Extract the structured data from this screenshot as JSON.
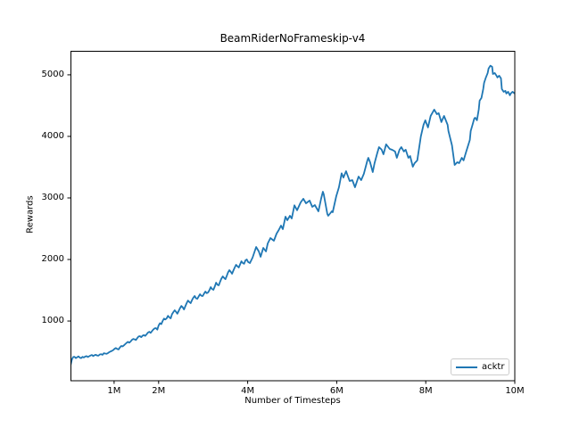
{
  "figure": {
    "background": "#ffffff",
    "spine_color": "#000000",
    "text_color": "#000000"
  },
  "chart_data": {
    "type": "line",
    "title": "BeamRiderNoFrameskip-v4",
    "xlabel": "Number of Timesteps",
    "ylabel": "Rewards",
    "xlim": [
      0.02,
      10.0
    ],
    "ylim": [
      30,
      5390
    ],
    "x_unit": "millions of timesteps",
    "grid": false,
    "legend_position": "lower right",
    "xticks": {
      "values": [
        1,
        2,
        4,
        6,
        8,
        10
      ],
      "labels": [
        "1M",
        "2M",
        "4M",
        "6M",
        "8M",
        "10M"
      ]
    },
    "yticks": {
      "values": [
        1000,
        2000,
        3000,
        4000,
        5000
      ],
      "labels": [
        "1000",
        "2000",
        "3000",
        "4000",
        "5000"
      ]
    },
    "series": [
      {
        "name": "acktr",
        "color": "#1f77b4",
        "points": [
          [
            0.02,
            275
          ],
          [
            0.05,
            370
          ],
          [
            0.08,
            415
          ],
          [
            0.11,
            420
          ],
          [
            0.14,
            398
          ],
          [
            0.17,
            412
          ],
          [
            0.2,
            425
          ],
          [
            0.23,
            405
          ],
          [
            0.26,
            398
          ],
          [
            0.29,
            418
          ],
          [
            0.32,
            408
          ],
          [
            0.35,
            422
          ],
          [
            0.38,
            430
          ],
          [
            0.41,
            415
          ],
          [
            0.44,
            428
          ],
          [
            0.47,
            440
          ],
          [
            0.5,
            448
          ],
          [
            0.53,
            432
          ],
          [
            0.56,
            445
          ],
          [
            0.59,
            452
          ],
          [
            0.62,
            440
          ],
          [
            0.65,
            438
          ],
          [
            0.68,
            458
          ],
          [
            0.71,
            462
          ],
          [
            0.74,
            452
          ],
          [
            0.77,
            478
          ],
          [
            0.8,
            472
          ],
          [
            0.83,
            468
          ],
          [
            0.86,
            478
          ],
          [
            0.89,
            495
          ],
          [
            0.92,
            505
          ],
          [
            0.95,
            515
          ],
          [
            0.98,
            528
          ],
          [
            1.01,
            548
          ],
          [
            1.04,
            562
          ],
          [
            1.07,
            545
          ],
          [
            1.1,
            538
          ],
          [
            1.13,
            572
          ],
          [
            1.16,
            595
          ],
          [
            1.19,
            588
          ],
          [
            1.22,
            605
          ],
          [
            1.25,
            625
          ],
          [
            1.28,
            645
          ],
          [
            1.31,
            662
          ],
          [
            1.34,
            648
          ],
          [
            1.37,
            668
          ],
          [
            1.4,
            695
          ],
          [
            1.43,
            710
          ],
          [
            1.46,
            702
          ],
          [
            1.49,
            692
          ],
          [
            1.52,
            722
          ],
          [
            1.55,
            748
          ],
          [
            1.58,
            755
          ],
          [
            1.61,
            738
          ],
          [
            1.64,
            762
          ],
          [
            1.67,
            772
          ],
          [
            1.7,
            758
          ],
          [
            1.73,
            785
          ],
          [
            1.76,
            812
          ],
          [
            1.79,
            825
          ],
          [
            1.82,
            808
          ],
          [
            1.85,
            835
          ],
          [
            1.88,
            862
          ],
          [
            1.91,
            880
          ],
          [
            1.94,
            885
          ],
          [
            1.97,
            860
          ],
          [
            2.0,
            928
          ],
          [
            2.03,
            965
          ],
          [
            2.06,
            950
          ],
          [
            2.09,
            1000
          ],
          [
            2.12,
            1040
          ],
          [
            2.15,
            1025
          ],
          [
            2.18,
            1043
          ],
          [
            2.21,
            1085
          ],
          [
            2.24,
            1060
          ],
          [
            2.27,
            1043
          ],
          [
            2.3,
            1110
          ],
          [
            2.33,
            1145
          ],
          [
            2.36,
            1174
          ],
          [
            2.39,
            1150
          ],
          [
            2.42,
            1120
          ],
          [
            2.45,
            1165
          ],
          [
            2.48,
            1210
          ],
          [
            2.51,
            1246
          ],
          [
            2.54,
            1225
          ],
          [
            2.57,
            1188
          ],
          [
            2.6,
            1240
          ],
          [
            2.63,
            1290
          ],
          [
            2.66,
            1333
          ],
          [
            2.69,
            1310
          ],
          [
            2.72,
            1290
          ],
          [
            2.75,
            1340
          ],
          [
            2.78,
            1380
          ],
          [
            2.81,
            1406
          ],
          [
            2.84,
            1370
          ],
          [
            2.87,
            1362
          ],
          [
            2.9,
            1400
          ],
          [
            2.93,
            1435
          ],
          [
            2.96,
            1410
          ],
          [
            2.99,
            1406
          ],
          [
            3.02,
            1445
          ],
          [
            3.05,
            1478
          ],
          [
            3.08,
            1452
          ],
          [
            3.11,
            1464
          ],
          [
            3.14,
            1500
          ],
          [
            3.17,
            1551
          ],
          [
            3.2,
            1520
          ],
          [
            3.23,
            1507
          ],
          [
            3.26,
            1560
          ],
          [
            3.29,
            1623
          ],
          [
            3.32,
            1590
          ],
          [
            3.35,
            1580
          ],
          [
            3.38,
            1640
          ],
          [
            3.41,
            1690
          ],
          [
            3.44,
            1725
          ],
          [
            3.47,
            1700
          ],
          [
            3.5,
            1680
          ],
          [
            3.53,
            1730
          ],
          [
            3.56,
            1790
          ],
          [
            3.59,
            1826
          ],
          [
            3.62,
            1800
          ],
          [
            3.65,
            1768
          ],
          [
            3.68,
            1820
          ],
          [
            3.71,
            1870
          ],
          [
            3.74,
            1913
          ],
          [
            3.77,
            1890
          ],
          [
            3.8,
            1870
          ],
          [
            3.83,
            1920
          ],
          [
            3.86,
            1971
          ],
          [
            3.89,
            1942
          ],
          [
            3.92,
            1930
          ],
          [
            3.95,
            1986
          ],
          [
            3.98,
            2000
          ],
          [
            4.01,
            1960
          ],
          [
            4.05,
            1942
          ],
          [
            4.11,
            2030
          ],
          [
            4.19,
            2203
          ],
          [
            4.25,
            2130
          ],
          [
            4.29,
            2043
          ],
          [
            4.35,
            2188
          ],
          [
            4.41,
            2130
          ],
          [
            4.45,
            2261
          ],
          [
            4.51,
            2348
          ],
          [
            4.59,
            2304
          ],
          [
            4.65,
            2420
          ],
          [
            4.7,
            2480
          ],
          [
            4.75,
            2551
          ],
          [
            4.79,
            2493
          ],
          [
            4.85,
            2696
          ],
          [
            4.89,
            2638
          ],
          [
            4.95,
            2710
          ],
          [
            4.99,
            2667
          ],
          [
            5.05,
            2880
          ],
          [
            5.11,
            2800
          ],
          [
            5.19,
            2928
          ],
          [
            5.25,
            2986
          ],
          [
            5.31,
            2913
          ],
          [
            5.39,
            2957
          ],
          [
            5.45,
            2855
          ],
          [
            5.51,
            2884
          ],
          [
            5.59,
            2783
          ],
          [
            5.65,
            2986
          ],
          [
            5.69,
            3101
          ],
          [
            5.71,
            3058
          ],
          [
            5.79,
            2739
          ],
          [
            5.81,
            2710
          ],
          [
            5.89,
            2783
          ],
          [
            5.91,
            2768
          ],
          [
            5.99,
            3029
          ],
          [
            6.05,
            3174
          ],
          [
            6.11,
            3400
          ],
          [
            6.15,
            3330
          ],
          [
            6.21,
            3435
          ],
          [
            6.29,
            3275
          ],
          [
            6.35,
            3290
          ],
          [
            6.41,
            3174
          ],
          [
            6.49,
            3348
          ],
          [
            6.55,
            3290
          ],
          [
            6.61,
            3391
          ],
          [
            6.69,
            3609
          ],
          [
            6.71,
            3652
          ],
          [
            6.75,
            3580
          ],
          [
            6.81,
            3420
          ],
          [
            6.85,
            3565
          ],
          [
            6.91,
            3725
          ],
          [
            6.95,
            3826
          ],
          [
            7.01,
            3783
          ],
          [
            7.05,
            3710
          ],
          [
            7.11,
            3870
          ],
          [
            7.19,
            3797
          ],
          [
            7.25,
            3780
          ],
          [
            7.31,
            3754
          ],
          [
            7.35,
            3652
          ],
          [
            7.41,
            3783
          ],
          [
            7.45,
            3826
          ],
          [
            7.51,
            3754
          ],
          [
            7.55,
            3783
          ],
          [
            7.61,
            3652
          ],
          [
            7.65,
            3681
          ],
          [
            7.71,
            3507
          ],
          [
            7.75,
            3565
          ],
          [
            7.81,
            3609
          ],
          [
            7.89,
            4000
          ],
          [
            7.95,
            4188
          ],
          [
            7.99,
            4261
          ],
          [
            8.05,
            4145
          ],
          [
            8.11,
            4333
          ],
          [
            8.19,
            4435
          ],
          [
            8.25,
            4362
          ],
          [
            8.29,
            4377
          ],
          [
            8.35,
            4232
          ],
          [
            8.41,
            4333
          ],
          [
            8.49,
            4188
          ],
          [
            8.51,
            4087
          ],
          [
            8.59,
            3855
          ],
          [
            8.65,
            3536
          ],
          [
            8.71,
            3580
          ],
          [
            8.75,
            3565
          ],
          [
            8.81,
            3652
          ],
          [
            8.85,
            3609
          ],
          [
            8.91,
            3754
          ],
          [
            8.99,
            3942
          ],
          [
            9.01,
            4087
          ],
          [
            9.05,
            4188
          ],
          [
            9.09,
            4290
          ],
          [
            9.11,
            4304
          ],
          [
            9.15,
            4261
          ],
          [
            9.19,
            4435
          ],
          [
            9.21,
            4580
          ],
          [
            9.25,
            4623
          ],
          [
            9.29,
            4768
          ],
          [
            9.31,
            4870
          ],
          [
            9.35,
            4957
          ],
          [
            9.39,
            5029
          ],
          [
            9.41,
            5101
          ],
          [
            9.45,
            5148
          ],
          [
            9.49,
            5130
          ],
          [
            9.51,
            5014
          ],
          [
            9.55,
            5029
          ],
          [
            9.59,
            4986
          ],
          [
            9.61,
            4957
          ],
          [
            9.65,
            4986
          ],
          [
            9.69,
            4942
          ],
          [
            9.71,
            4768
          ],
          [
            9.75,
            4725
          ],
          [
            9.79,
            4739
          ],
          [
            9.81,
            4696
          ],
          [
            9.85,
            4725
          ],
          [
            9.89,
            4667
          ],
          [
            9.91,
            4696
          ],
          [
            9.95,
            4725
          ],
          [
            10.0,
            4696
          ]
        ]
      }
    ]
  }
}
